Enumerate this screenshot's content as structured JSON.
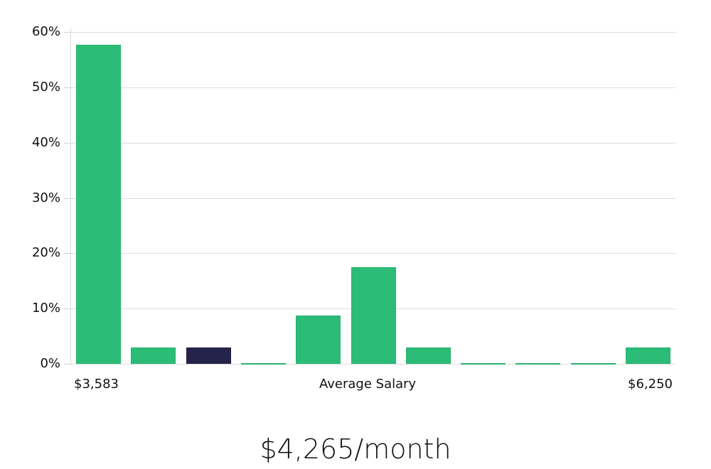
{
  "chart_data": {
    "type": "bar",
    "title": "",
    "xlabel": "Average Salary",
    "ylabel": "",
    "ylim": [
      0,
      60
    ],
    "yticks": [
      "0%",
      "10%",
      "20%",
      "30%",
      "40%",
      "50%",
      "60%"
    ],
    "x_range_labels": {
      "min": "$3,583",
      "max": "$6,250"
    },
    "categories": [
      "bin1",
      "bin2",
      "bin3",
      "bin4",
      "bin5",
      "bin6",
      "bin7",
      "bin8",
      "bin9",
      "bin10",
      "bin11"
    ],
    "values": [
      57.7,
      3.0,
      3.0,
      0.1,
      8.7,
      17.5,
      3.0,
      0.1,
      0.1,
      0.1,
      3.0
    ],
    "highlighted_index": 2,
    "grid": true,
    "legend": "none"
  },
  "colors": {
    "bar": "#2bbd77",
    "highlight": "#26234a",
    "grid": "#dcdcdc"
  },
  "labels": {
    "x_min": "$3,583",
    "x_center": "Average Salary",
    "x_max": "$6,250",
    "headline": "$4,265/month"
  }
}
